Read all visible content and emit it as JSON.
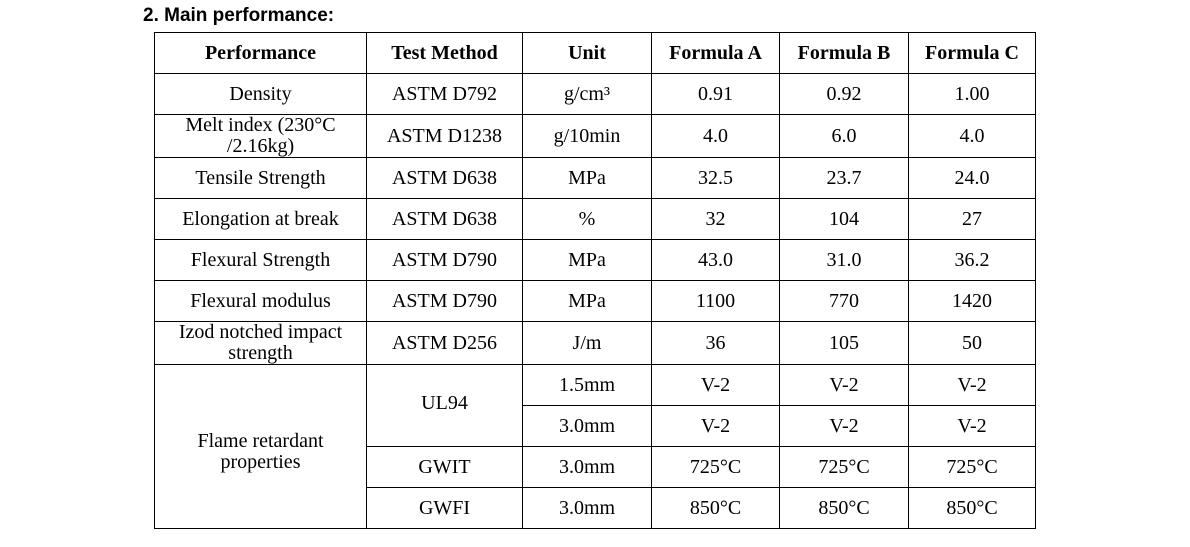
{
  "title": "2. Main performance:",
  "headers": [
    "Performance",
    "Test Method",
    "Unit",
    "Formula A",
    "Formula B",
    "Formula C"
  ],
  "rows": [
    {
      "performance": "Density",
      "method": "ASTM D792",
      "unit": "g/cm³",
      "a": "0.91",
      "b": "0.92",
      "c": "1.00"
    },
    {
      "performance": "Melt index (230°C /2.16kg)",
      "method": "ASTM D1238",
      "unit": "g/10min",
      "a": "4.0",
      "b": "6.0",
      "c": "4.0"
    },
    {
      "performance": "Tensile Strength",
      "method": "ASTM D638",
      "unit": "MPa",
      "a": "32.5",
      "b": "23.7",
      "c": "24.0"
    },
    {
      "performance": "Elongation at break",
      "method": "ASTM D638",
      "unit": "%",
      "a": "32",
      "b": "104",
      "c": "27"
    },
    {
      "performance": "Flexural Strength",
      "method": "ASTM D790",
      "unit": "MPa",
      "a": "43.0",
      "b": "31.0",
      "c": "36.2"
    },
    {
      "performance": "Flexural modulus",
      "method": "ASTM D790",
      "unit": "MPa",
      "a": "1100",
      "b": "770",
      "c": "1420"
    },
    {
      "performance": "Izod notched impact strength",
      "method": "ASTM D256",
      "unit": "J/m",
      "a": "36",
      "b": "105",
      "c": "50"
    }
  ],
  "flame": {
    "performance": "Flame retardant properties",
    "rows": [
      {
        "method": "UL94",
        "unit": "1.5mm",
        "a": "V-2",
        "b": "V-2",
        "c": "V-2"
      },
      {
        "method": "UL94",
        "unit": "3.0mm",
        "a": "V-2",
        "b": "V-2",
        "c": "V-2"
      },
      {
        "method": "GWIT",
        "unit": "3.0mm",
        "a": "725°C",
        "b": "725°C",
        "c": "725°C"
      },
      {
        "method": "GWFI",
        "unit": "3.0mm",
        "a": "850°C",
        "b": "850°C",
        "c": "850°C"
      }
    ]
  }
}
